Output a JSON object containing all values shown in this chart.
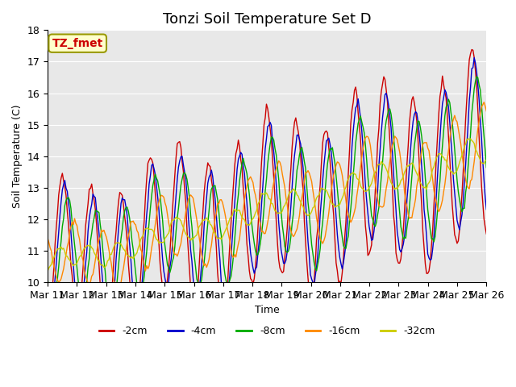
{
  "title": "Tonzi Soil Temperature Set D",
  "xlabel": "Time",
  "ylabel": "Soil Temperature (C)",
  "annotation": "TZ_fmet",
  "ylim": [
    10.0,
    18.0
  ],
  "yticks": [
    10.0,
    11.0,
    12.0,
    13.0,
    14.0,
    15.0,
    16.0,
    17.0,
    18.0
  ],
  "xtick_labels": [
    "Mar 11",
    "Mar 12",
    "Mar 13",
    "Mar 14",
    "Mar 15",
    "Mar 16",
    "Mar 17",
    "Mar 18",
    "Mar 19",
    "Mar 20",
    "Mar 21",
    "Mar 22",
    "Mar 23",
    "Mar 24",
    "Mar 25",
    "Mar 26"
  ],
  "series_colors": [
    "#cc0000",
    "#0000cc",
    "#00aa00",
    "#ff8800",
    "#cccc00"
  ],
  "series_labels": [
    "-2cm",
    "-4cm",
    "-8cm",
    "-16cm",
    "-32cm"
  ],
  "background_color": "#e8e8e8",
  "title_fontsize": 13,
  "axis_fontsize": 9,
  "legend_fontsize": 9
}
